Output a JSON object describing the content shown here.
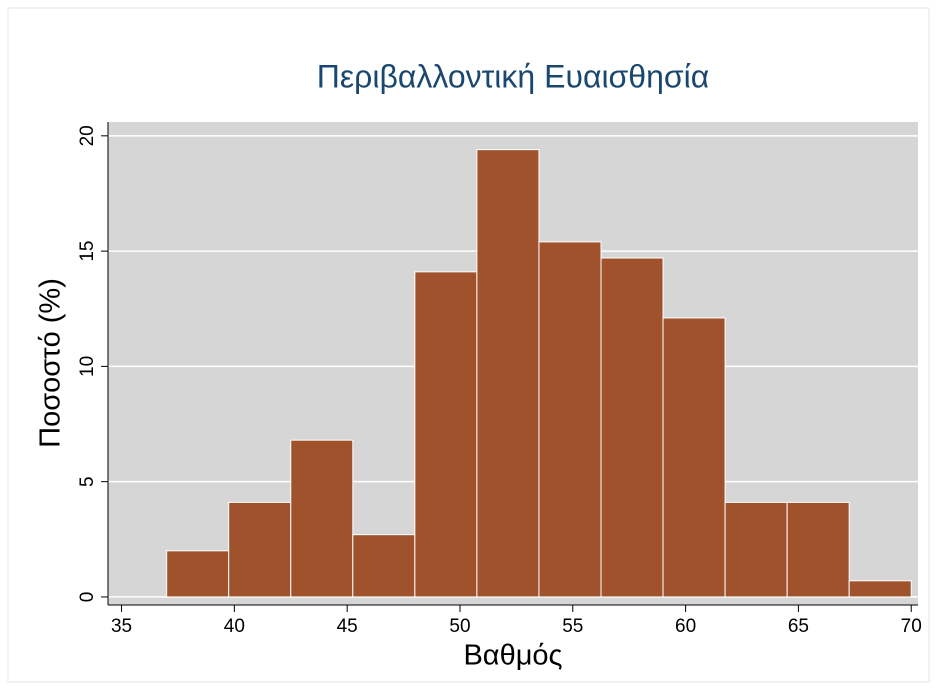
{
  "chart_data": {
    "type": "histogram",
    "title": "Περιβαλλοντική Ευαισθησία",
    "x_label": "Βαθμός",
    "y_label": "Ποσοστό (%)",
    "bins": [
      37,
      39.75,
      42.5,
      45.25,
      48,
      50.75,
      53.5,
      56.25,
      59,
      61.75,
      64.5,
      67.25,
      70
    ],
    "values": [
      2.0,
      4.1,
      6.8,
      2.7,
      14.1,
      19.4,
      15.4,
      14.7,
      12.1,
      4.1,
      4.1,
      0.7
    ],
    "color": "#a0522d",
    "xlim": [
      34.4,
      70.3
    ],
    "xticks": [
      35,
      40,
      45,
      50,
      55,
      60,
      65,
      70
    ],
    "ylim": [
      -0.35,
      20.6
    ],
    "yticks": [
      0,
      5,
      10,
      15,
      20
    ],
    "grid": true
  }
}
